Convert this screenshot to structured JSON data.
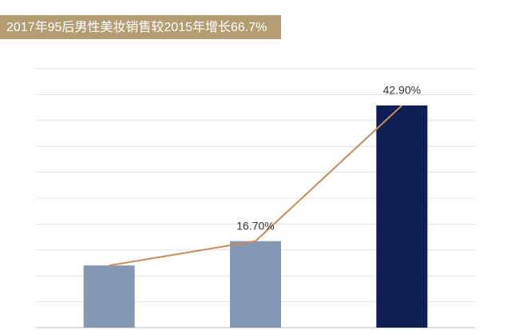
{
  "chart_data": {
    "type": "bar",
    "title": "2017年95后男性美妆销售较2015年增长66.7%",
    "categories": [
      null,
      null,
      null
    ],
    "values": [
      12,
      16.7,
      42.9
    ],
    "value_labels": [
      null,
      "16.70%",
      "42.90%"
    ],
    "colors": [
      "#8398b2",
      "#8398b2",
      "#0e1f56"
    ],
    "line_color": "#c98d58",
    "ylim": [
      0,
      50
    ],
    "yticks": [
      0,
      5,
      10,
      15,
      20,
      25,
      30,
      35,
      40,
      45,
      50
    ],
    "grid": true
  }
}
